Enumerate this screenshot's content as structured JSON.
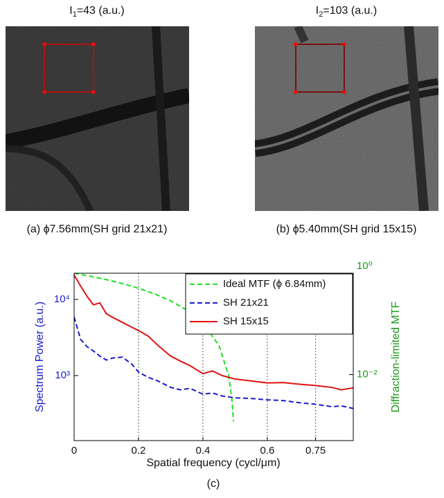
{
  "panels": [
    {
      "intensity_label": {
        "prefix": "I",
        "sub": "1",
        "rest": "=43 (a.u.)"
      },
      "caption": "(a) ϕ7.56mm(SH grid 21x21)"
    },
    {
      "intensity_label": {
        "prefix": "I",
        "sub": "2",
        "rest": "=103 (a.u.)"
      },
      "caption": "(b) ϕ5.40mm(SH grid 15x15)"
    }
  ],
  "chart_data": {
    "type": "line",
    "xlabel": "Spatial frequency (cycl/μm)",
    "ylabel": "Spectrum Power (a.u.)",
    "y2label": "Diffraction-limited MTF",
    "xlim": [
      0,
      0.867
    ],
    "xticks": [
      0,
      0.2,
      0.4,
      0.6,
      0.75
    ],
    "ylim": [
      140,
      22100
    ],
    "yscale": "log",
    "yticks": [
      {
        "value": 1000,
        "label": "10³"
      },
      {
        "value": 10000,
        "label": "10⁴"
      }
    ],
    "y2lim": [
      0.0005,
      1
    ],
    "y2scale": "log",
    "y2ticks": [
      {
        "value": 0.01,
        "label": "10⁻²"
      },
      {
        "value": 1,
        "label": "10⁰"
      }
    ],
    "grid": true,
    "legend": "upper right",
    "series": [
      {
        "name": "Ideal MTF (ϕ 6.84mm)",
        "color": "#22dd22",
        "dash": "dashed",
        "axis": "y2",
        "x": [
          0,
          0.05,
          0.1,
          0.15,
          0.2,
          0.25,
          0.3,
          0.35,
          0.4,
          0.45,
          0.48,
          0.49,
          0.495
        ],
        "values": [
          1,
          0.873,
          0.747,
          0.624,
          0.505,
          0.391,
          0.285,
          0.188,
          0.104,
          0.0374,
          0.0096,
          0.0034,
          0.0012
        ]
      },
      {
        "name": "SH 21x21",
        "color": "#1a1acc",
        "dash": "dashed",
        "x": [
          0,
          0.02,
          0.04,
          0.06,
          0.08,
          0.1,
          0.12,
          0.15,
          0.18,
          0.2,
          0.23,
          0.26,
          0.3,
          0.33,
          0.36,
          0.4,
          0.43,
          0.46,
          0.5,
          0.55,
          0.6,
          0.65,
          0.7,
          0.75,
          0.8,
          0.83,
          0.867
        ],
        "values": [
          5900,
          3000,
          2400,
          2100,
          1800,
          1600,
          1700,
          1750,
          1400,
          1110,
          950,
          850,
          700,
          650,
          680,
          570,
          590,
          540,
          510,
          500,
          480,
          470,
          440,
          420,
          390,
          400,
          370
        ]
      },
      {
        "name": "SH 15x15",
        "color": "#dd1111",
        "dash": "solid",
        "x": [
          0,
          0.02,
          0.04,
          0.06,
          0.08,
          0.1,
          0.12,
          0.15,
          0.18,
          0.2,
          0.23,
          0.26,
          0.3,
          0.33,
          0.36,
          0.4,
          0.43,
          0.46,
          0.5,
          0.55,
          0.6,
          0.65,
          0.7,
          0.75,
          0.8,
          0.83,
          0.867
        ],
        "values": [
          21000,
          15000,
          11000,
          8500,
          9000,
          6500,
          5800,
          5000,
          4300,
          3900,
          3300,
          2500,
          1800,
          1550,
          1350,
          1060,
          1150,
          1000,
          900,
          850,
          800,
          810,
          770,
          740,
          700,
          650,
          690
        ]
      }
    ]
  },
  "chart_caption": "(c)"
}
